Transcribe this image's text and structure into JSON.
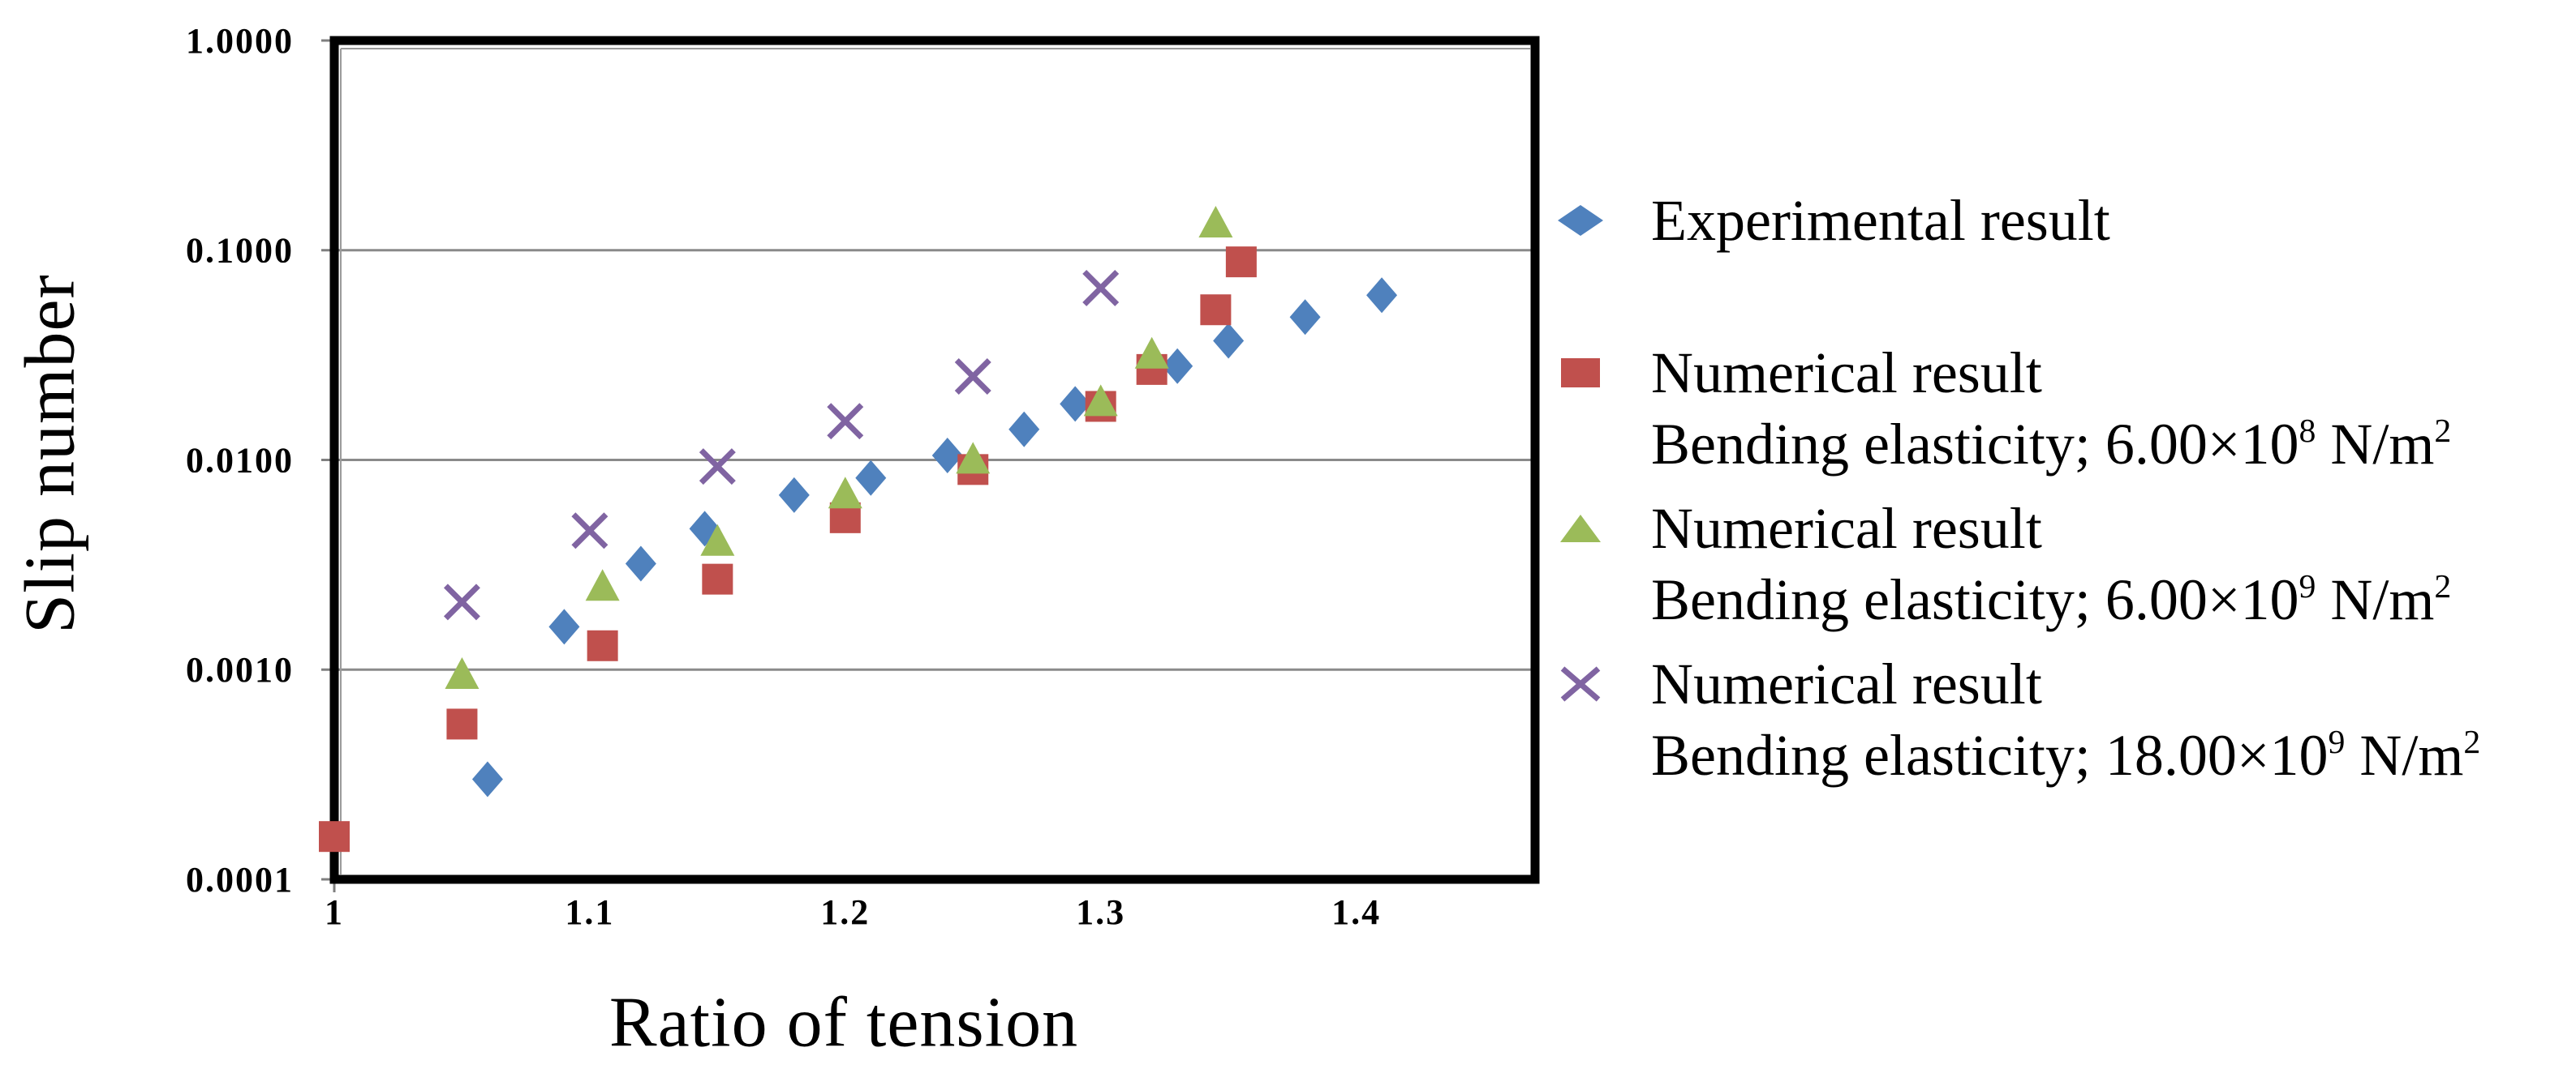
{
  "figure": {
    "background": "#ffffff",
    "frame_color": "#000000",
    "gridline_color": "#8a8a8a"
  },
  "chart_data": {
    "type": "scatter",
    "title": "",
    "xlabel": "Ratio of tension",
    "ylabel": "Slip number",
    "x_axis": {
      "scale": "linear",
      "min": 1.0,
      "max": 1.47,
      "ticks": [
        1,
        1.1,
        1.2,
        1.3,
        1.4
      ],
      "tick_labels": [
        "1",
        "1.1",
        "1.2",
        "1.3",
        "1.4"
      ]
    },
    "y_axis": {
      "scale": "log",
      "min": 0.0001,
      "max": 1.0,
      "ticks": [
        1.0,
        0.1,
        0.01,
        0.001,
        0.0001
      ],
      "tick_labels": [
        "1.0000",
        "0.1000",
        "0.0100",
        "0.0010",
        "0.0001"
      ],
      "gridlines": [
        0.1,
        0.01,
        0.001
      ]
    },
    "series": [
      {
        "name": "Experimental result",
        "marker": "diamond",
        "color": "#4F81BD",
        "points": [
          [
            1.06,
            0.0003
          ],
          [
            1.09,
            0.0016
          ],
          [
            1.12,
            0.0032
          ],
          [
            1.145,
            0.0047
          ],
          [
            1.18,
            0.0068
          ],
          [
            1.21,
            0.0082
          ],
          [
            1.24,
            0.0105
          ],
          [
            1.27,
            0.014
          ],
          [
            1.29,
            0.0185
          ],
          [
            1.33,
            0.028
          ],
          [
            1.35,
            0.037
          ],
          [
            1.38,
            0.048
          ],
          [
            1.41,
            0.061
          ]
        ]
      },
      {
        "name": "Numerical result, Bending elasticity; 6.00×10^8 N/m^2",
        "marker": "square",
        "color": "#C0504D",
        "points": [
          [
            1.0,
            0.00016
          ],
          [
            1.05,
            0.00055
          ],
          [
            1.105,
            0.0013
          ],
          [
            1.15,
            0.0027
          ],
          [
            1.2,
            0.0053
          ],
          [
            1.25,
            0.009
          ],
          [
            1.3,
            0.018
          ],
          [
            1.32,
            0.027
          ],
          [
            1.345,
            0.052
          ],
          [
            1.355,
            0.088
          ]
        ]
      },
      {
        "name": "Numerical result, Bending elasticity; 6.00×10^9 N/m^2",
        "marker": "triangle",
        "color": "#9BBB59",
        "points": [
          [
            1.05,
            0.00095
          ],
          [
            1.105,
            0.0025
          ],
          [
            1.15,
            0.0041
          ],
          [
            1.2,
            0.0069
          ],
          [
            1.25,
            0.0101
          ],
          [
            1.3,
            0.019
          ],
          [
            1.32,
            0.032
          ],
          [
            1.345,
            0.135
          ]
        ]
      },
      {
        "name": "Numerical result, Bending elasticity; 18.00×10^9 N/m^2",
        "marker": "x",
        "color": "#8064A2",
        "points": [
          [
            1.05,
            0.0021
          ],
          [
            1.1,
            0.0046
          ],
          [
            1.15,
            0.0093
          ],
          [
            1.2,
            0.0153
          ],
          [
            1.25,
            0.025
          ],
          [
            1.3,
            0.066
          ]
        ]
      }
    ]
  },
  "legend": {
    "items": [
      {
        "marker": "diamond",
        "color": "#4F81BD",
        "line1": "Experimental result"
      },
      {
        "marker": "square",
        "color": "#C0504D",
        "line1": "Numerical result",
        "line2_pre": "Bending elasticity; 6.00×10",
        "line2_sup": "8",
        "line2_mid": " N/m",
        "line2_sup2": "2"
      },
      {
        "marker": "triangle",
        "color": "#9BBB59",
        "line1": "Numerical result",
        "line2_pre": "Bending elasticity; 6.00×10",
        "line2_sup": "9",
        "line2_mid": " N/m",
        "line2_sup2": "2"
      },
      {
        "marker": "x",
        "color": "#8064A2",
        "line1": "Numerical result",
        "line2_pre": "Bending elasticity; 18.00×10",
        "line2_sup": "9",
        "line2_mid": " N/m",
        "line2_sup2": "2"
      }
    ]
  }
}
